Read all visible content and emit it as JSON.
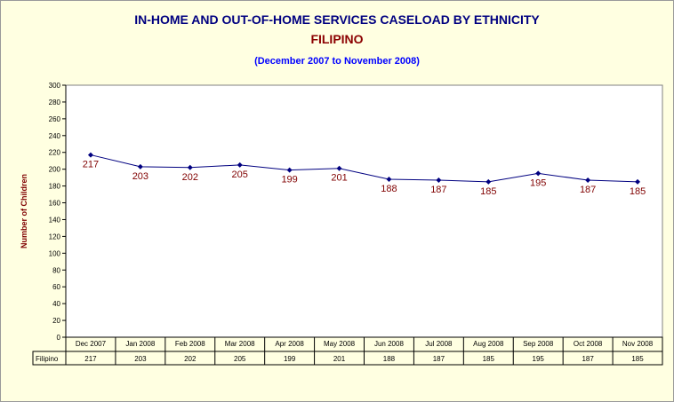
{
  "title": "IN-HOME AND OUT-OF-HOME SERVICES CASELOAD BY ETHNICITY",
  "subtitle": "FILIPINO",
  "date_range": "(December 2007 to November 2008)",
  "chart_data": {
    "type": "line",
    "title": "IN-HOME AND OUT-OF-HOME SERVICES CASELOAD BY ETHNICITY",
    "ylabel": "Number of Children",
    "xlabel": "",
    "ylim": [
      0,
      300
    ],
    "ytick_step": 20,
    "grid": false,
    "categories": [
      "Dec 2007",
      "Jan 2008",
      "Feb 2008",
      "Mar 2008",
      "Apr 2008",
      "May 2008",
      "Jun 2008",
      "Jul 2008",
      "Aug 2008",
      "Sep 2008",
      "Oct 2008",
      "Nov 2008"
    ],
    "series": [
      {
        "name": "Filipino",
        "values": [
          217,
          203,
          202,
          205,
          199,
          201,
          188,
          187,
          185,
          195,
          187,
          185
        ],
        "color": "#000080",
        "label_color": "#800000"
      }
    ],
    "data_table": true
  },
  "colors": {
    "background": "#ffffe1",
    "plot_area": "#ffffff",
    "title": "#000080",
    "subtitle": "#8b0000",
    "date_range": "#0000ff"
  }
}
